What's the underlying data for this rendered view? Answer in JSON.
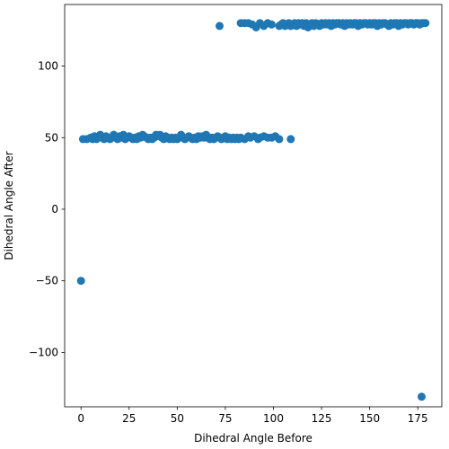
{
  "chart_data": {
    "type": "scatter",
    "title": "",
    "xlabel": "Dihedral Angle Before",
    "ylabel": "Dihedral Angle After",
    "xlim": [
      -8.5,
      187.5
    ],
    "ylim": [
      -138,
      143
    ],
    "grid": false,
    "marker_color": "#1f77b4",
    "x_ticks": [
      0,
      25,
      50,
      75,
      100,
      125,
      150,
      175
    ],
    "x_tick_labels": [
      "0",
      "25",
      "50",
      "75",
      "100",
      "125",
      "150",
      "175"
    ],
    "y_ticks": [
      -100,
      -50,
      0,
      50,
      100
    ],
    "y_tick_labels": [
      "−100",
      "−50",
      "0",
      "50",
      "100"
    ],
    "series": [
      {
        "values": [
          [
            0,
            -50
          ],
          [
            177,
            -131
          ],
          [
            72,
            128
          ],
          [
            1,
            49
          ],
          [
            3,
            49
          ],
          [
            5,
            50
          ],
          [
            6,
            49
          ],
          [
            7,
            51
          ],
          [
            8,
            49
          ],
          [
            9,
            50
          ],
          [
            10,
            52
          ],
          [
            11,
            50
          ],
          [
            12,
            49
          ],
          [
            13,
            51
          ],
          [
            14,
            50
          ],
          [
            15,
            49
          ],
          [
            16,
            50
          ],
          [
            17,
            52
          ],
          [
            18,
            50
          ],
          [
            19,
            49
          ],
          [
            20,
            51
          ],
          [
            21,
            50
          ],
          [
            22,
            52
          ],
          [
            23,
            49
          ],
          [
            24,
            50
          ],
          [
            25,
            51
          ],
          [
            26,
            50
          ],
          [
            27,
            49
          ],
          [
            28,
            50
          ],
          [
            29,
            49
          ],
          [
            30,
            51
          ],
          [
            31,
            50
          ],
          [
            32,
            52
          ],
          [
            33,
            51
          ],
          [
            34,
            50
          ],
          [
            35,
            49
          ],
          [
            36,
            50
          ],
          [
            37,
            49
          ],
          [
            38,
            50
          ],
          [
            39,
            52
          ],
          [
            40,
            51
          ],
          [
            41,
            52
          ],
          [
            42,
            50
          ],
          [
            43,
            49
          ],
          [
            44,
            51
          ],
          [
            45,
            50
          ],
          [
            46,
            49
          ],
          [
            47,
            50
          ],
          [
            48,
            49
          ],
          [
            49,
            50
          ],
          [
            50,
            49
          ],
          [
            51,
            50
          ],
          [
            52,
            52
          ],
          [
            53,
            50
          ],
          [
            54,
            49
          ],
          [
            55,
            50
          ],
          [
            56,
            51
          ],
          [
            57,
            50
          ],
          [
            58,
            49
          ],
          [
            59,
            50
          ],
          [
            60,
            49
          ],
          [
            61,
            51
          ],
          [
            62,
            50
          ],
          [
            63,
            51
          ],
          [
            64,
            50
          ],
          [
            65,
            52
          ],
          [
            66,
            50
          ],
          [
            67,
            49
          ],
          [
            68,
            50
          ],
          [
            69,
            49
          ],
          [
            70,
            50
          ],
          [
            71,
            51
          ],
          [
            72,
            50
          ],
          [
            73,
            49
          ],
          [
            74,
            50
          ],
          [
            75,
            51
          ],
          [
            76,
            49
          ],
          [
            77,
            50
          ],
          [
            78,
            49
          ],
          [
            79,
            50
          ],
          [
            80,
            49
          ],
          [
            81,
            50
          ],
          [
            82,
            49
          ],
          [
            83,
            50
          ],
          [
            85,
            49
          ],
          [
            87,
            51
          ],
          [
            88,
            50
          ],
          [
            90,
            51
          ],
          [
            92,
            49
          ],
          [
            93,
            50
          ],
          [
            95,
            51
          ],
          [
            97,
            50
          ],
          [
            99,
            50
          ],
          [
            101,
            51
          ],
          [
            103,
            49
          ],
          [
            109,
            49
          ],
          [
            83,
            130
          ],
          [
            85,
            130
          ],
          [
            87,
            130
          ],
          [
            89,
            129
          ],
          [
            91,
            127
          ],
          [
            93,
            130
          ],
          [
            95,
            128
          ],
          [
            97,
            130
          ],
          [
            99,
            129
          ],
          [
            103,
            128
          ],
          [
            104,
            129
          ],
          [
            105,
            130
          ],
          [
            106,
            128
          ],
          [
            107,
            129
          ],
          [
            108,
            130
          ],
          [
            109,
            128
          ],
          [
            110,
            129
          ],
          [
            111,
            130
          ],
          [
            112,
            128
          ],
          [
            113,
            130
          ],
          [
            114,
            129
          ],
          [
            115,
            130
          ],
          [
            116,
            128
          ],
          [
            117,
            130
          ],
          [
            118,
            127
          ],
          [
            119,
            129
          ],
          [
            120,
            130
          ],
          [
            121,
            128
          ],
          [
            122,
            130
          ],
          [
            123,
            129
          ],
          [
            124,
            128
          ],
          [
            125,
            130
          ],
          [
            126,
            129
          ],
          [
            127,
            130
          ],
          [
            128,
            129
          ],
          [
            129,
            130
          ],
          [
            130,
            128
          ],
          [
            131,
            130
          ],
          [
            132,
            129
          ],
          [
            133,
            130
          ],
          [
            134,
            130
          ],
          [
            135,
            129
          ],
          [
            136,
            130
          ],
          [
            137,
            128
          ],
          [
            138,
            130
          ],
          [
            139,
            129
          ],
          [
            140,
            130
          ],
          [
            141,
            129
          ],
          [
            142,
            130
          ],
          [
            143,
            130
          ],
          [
            144,
            128
          ],
          [
            145,
            130
          ],
          [
            146,
            129
          ],
          [
            147,
            130
          ],
          [
            148,
            130
          ],
          [
            149,
            129
          ],
          [
            150,
            130
          ],
          [
            151,
            129
          ],
          [
            152,
            130
          ],
          [
            153,
            130
          ],
          [
            154,
            128
          ],
          [
            155,
            130
          ],
          [
            156,
            129
          ],
          [
            157,
            130
          ],
          [
            158,
            130
          ],
          [
            159,
            129
          ],
          [
            160,
            128
          ],
          [
            161,
            130
          ],
          [
            162,
            129
          ],
          [
            163,
            130
          ],
          [
            164,
            130
          ],
          [
            165,
            128
          ],
          [
            166,
            130
          ],
          [
            167,
            129
          ],
          [
            168,
            130
          ],
          [
            169,
            130
          ],
          [
            170,
            129
          ],
          [
            171,
            130
          ],
          [
            172,
            130
          ],
          [
            173,
            129
          ],
          [
            174,
            130
          ],
          [
            175,
            130
          ],
          [
            176,
            129
          ],
          [
            177,
            130
          ],
          [
            178,
            130
          ],
          [
            179,
            130
          ]
        ]
      }
    ]
  }
}
